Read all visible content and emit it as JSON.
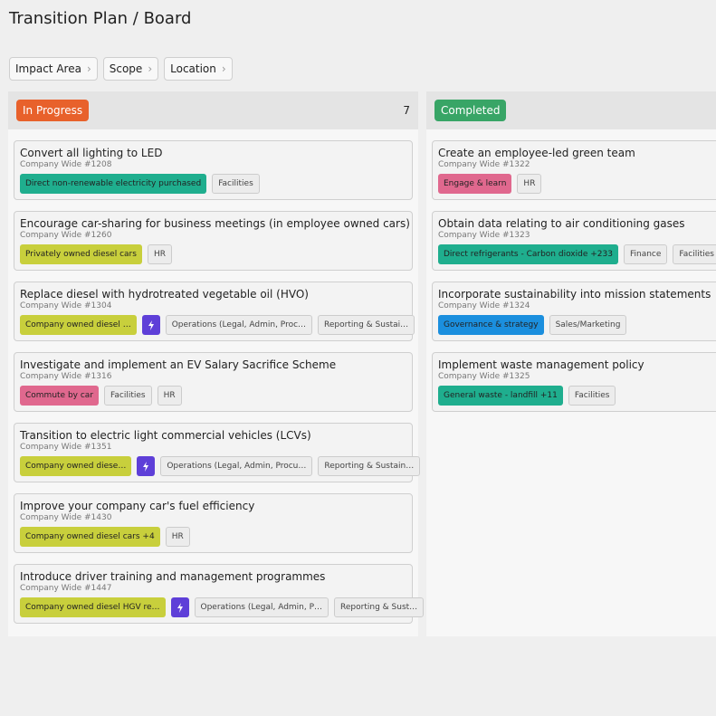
{
  "header": {
    "title": "Transition Plan / Board"
  },
  "filters": [
    "Impact Area",
    "Scope",
    "Location"
  ],
  "columns": [
    {
      "title": "In Progress",
      "count": 7,
      "color": "#e8612b",
      "cards": [
        {
          "title": "Convert all lighting to LED",
          "subtitle": "Company Wide #1208",
          "tags": [
            {
              "label": "Direct non-renewable electricity purchased",
              "color": "#1fae8e"
            },
            {
              "label": "Facilities",
              "color": "#ececec"
            }
          ]
        },
        {
          "title": "Encourage car-sharing for business meetings (in employee owned cars)",
          "subtitle": "Company Wide #1260",
          "tags": [
            {
              "label": "Privately owned diesel cars",
              "color": "#c8cf3c"
            },
            {
              "label": "HR",
              "color": "#ececec"
            }
          ]
        },
        {
          "title": "Replace diesel with hydrotreated vegetable oil (HVO)",
          "subtitle": "Company Wide #1304",
          "tags": [
            {
              "label": "Company owned diesel …",
              "color": "#c8cf3c"
            },
            {
              "icon": "bolt",
              "color": "#5e3fd8"
            },
            {
              "label": "Operations (Legal, Admin, Proc…",
              "color": "#ececec"
            },
            {
              "label": "Reporting & Sustai…",
              "color": "#ececec"
            }
          ]
        },
        {
          "title": "Investigate and implement an EV Salary Sacrifice Scheme",
          "subtitle": "Company Wide #1316",
          "tags": [
            {
              "label": "Commute by car",
              "color": "#e0688e"
            },
            {
              "label": "Facilities",
              "color": "#ececec"
            },
            {
              "label": "HR",
              "color": "#ececec"
            }
          ]
        },
        {
          "title": "Transition to electric light commercial vehicles (LCVs)",
          "subtitle": "Company Wide #1351",
          "tags": [
            {
              "label": "Company owned diese…",
              "color": "#c8cf3c"
            },
            {
              "icon": "bolt",
              "color": "#5e3fd8"
            },
            {
              "label": "Operations (Legal, Admin, Procu…",
              "color": "#ececec"
            },
            {
              "label": "Reporting & Sustain…",
              "color": "#ececec"
            }
          ]
        },
        {
          "title": "Improve your company car's fuel efficiency",
          "subtitle": "Company Wide #1430",
          "tags": [
            {
              "label": "Company owned diesel cars +4",
              "color": "#c8cf3c"
            },
            {
              "label": "HR",
              "color": "#ececec"
            }
          ]
        },
        {
          "title": "Introduce driver training and management programmes",
          "subtitle": "Company Wide #1447",
          "tags": [
            {
              "label": "Company owned diesel HGV re…",
              "color": "#c8cf3c"
            },
            {
              "icon": "bolt",
              "color": "#5e3fd8"
            },
            {
              "label": "Operations (Legal, Admin, P…",
              "color": "#ececec"
            },
            {
              "label": "Reporting & Sust…",
              "color": "#ececec"
            }
          ]
        }
      ]
    },
    {
      "title": "Completed",
      "color": "#38a566",
      "cards": [
        {
          "title": "Create an employee-led green team",
          "subtitle": "Company Wide #1322",
          "tags": [
            {
              "label": "Engage & learn",
              "color": "#e0688e"
            },
            {
              "label": "HR",
              "color": "#ececec"
            }
          ]
        },
        {
          "title": "Obtain data relating to air conditioning gases",
          "subtitle": "Company Wide #1323",
          "tags": [
            {
              "label": "Direct refrigerants - Carbon dioxide +233",
              "color": "#1fae8e"
            },
            {
              "label": "Finance",
              "color": "#ececec"
            },
            {
              "label": "Facilities",
              "color": "#ececec"
            }
          ]
        },
        {
          "title": "Incorporate sustainability into mission statements",
          "subtitle": "Company Wide #1324",
          "tags": [
            {
              "label": "Governance & strategy",
              "color": "#1b8fde"
            },
            {
              "label": "Sales/Marketing",
              "color": "#ececec"
            }
          ]
        },
        {
          "title": "Implement waste management policy",
          "subtitle": "Company Wide #1325",
          "tags": [
            {
              "label": "General waste - landfill +11",
              "color": "#1fae8e"
            },
            {
              "label": "Facilities",
              "color": "#ececec"
            }
          ]
        }
      ]
    }
  ]
}
